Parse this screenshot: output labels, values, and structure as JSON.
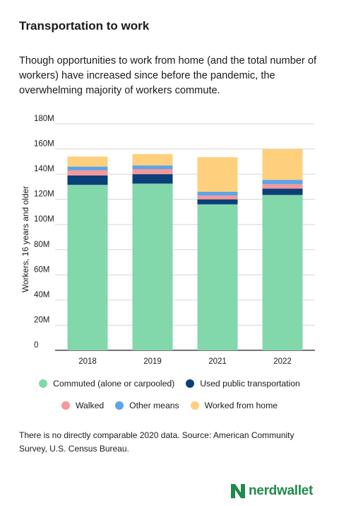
{
  "title": "Transportation to work",
  "subtitle": "Though opportunities to work from home (and the total number of workers) have increased since before the pandemic, the overwhelming majority of workers commute.",
  "note": "There is no directly comparable 2020 data. Source: American Community Survey, U.S. Census Bureau.",
  "brand": "nerdwallet",
  "colors": {
    "commuted": "#82d8ab",
    "public": "#0b3f78",
    "walked": "#f4989a",
    "other": "#5ea4e6",
    "home": "#fed07e"
  },
  "chart_data": {
    "type": "bar",
    "stacked": true,
    "categories": [
      "2018",
      "2019",
      "2021",
      "2022"
    ],
    "ylabel": "Workers, 16 years and older",
    "ylim": [
      0,
      180
    ],
    "yticks": [
      "0",
      "20M",
      "40M",
      "60M",
      "80M",
      "100M",
      "120M",
      "140M",
      "160M",
      "180M"
    ],
    "grid": true,
    "legend_position": "bottom",
    "series": [
      {
        "name": "Commuted (alone or carpooled)",
        "key": "commuted",
        "values": [
          131.5,
          132.5,
          116.0,
          123.5
        ]
      },
      {
        "name": "Used public transportation",
        "key": "public",
        "values": [
          7.5,
          7.5,
          4.0,
          5.0
        ]
      },
      {
        "name": "Walked",
        "key": "walked",
        "values": [
          4.0,
          4.0,
          3.0,
          3.5
        ]
      },
      {
        "name": "Other means",
        "key": "other",
        "values": [
          3.0,
          3.0,
          3.0,
          3.5
        ]
      },
      {
        "name": "Worked from home",
        "key": "home",
        "values": [
          8.0,
          9.0,
          27.5,
          24.5
        ]
      }
    ]
  }
}
